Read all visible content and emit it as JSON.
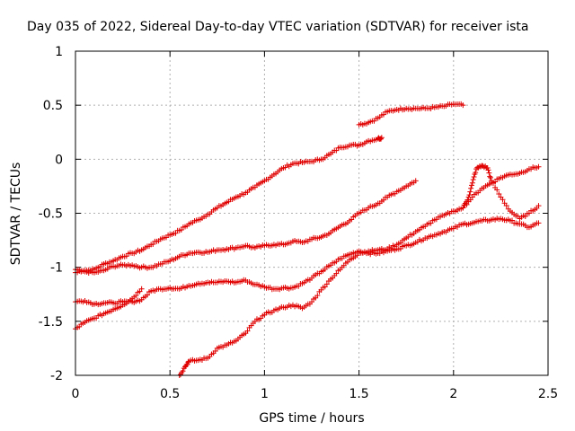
{
  "chart_data": {
    "type": "scatter",
    "title": "Day 035 of 2022, Sidereal Day-to-day VTEC variation (SDTVAR) for receiver ista",
    "xlabel": "GPS time / hours",
    "ylabel": "SDTVAR / TECUs",
    "xlim": [
      0,
      2.5
    ],
    "ylim": [
      -2,
      1
    ],
    "xticks": [
      "0",
      "0.5",
      "1",
      "1.5",
      "2",
      "2.5"
    ],
    "yticks": [
      "1",
      "0.5",
      "0",
      "-0.5",
      "-1",
      "-1.5",
      "-2"
    ],
    "grid": true,
    "marker": "+",
    "colors": {
      "series": "#e00000",
      "grid": "#b0b0b0"
    },
    "series": [
      {
        "x": [
          0,
          0.05,
          0.1,
          0.15,
          0.2,
          0.25,
          0.3,
          0.35,
          0.4,
          0.45,
          0.5,
          0.55,
          0.6,
          0.65,
          0.7,
          0.75,
          0.8,
          0.85,
          0.9,
          0.95,
          1.0,
          1.05,
          1.1,
          1.15,
          1.2,
          1.25,
          1.3,
          1.35,
          1.4,
          1.45,
          1.5,
          1.55,
          1.6,
          1.62
        ],
        "y": [
          -1.02,
          -1.03,
          -1.02,
          -0.97,
          -0.94,
          -0.9,
          -0.87,
          -0.84,
          -0.79,
          -0.74,
          -0.7,
          -0.66,
          -0.6,
          -0.56,
          -0.51,
          -0.45,
          -0.4,
          -0.35,
          -0.31,
          -0.26,
          -0.2,
          -0.14,
          -0.08,
          -0.04,
          -0.03,
          -0.02,
          0.0,
          0.05,
          0.11,
          0.13,
          0.13,
          0.17,
          0.19,
          0.2
        ]
      },
      {
        "x": [
          1.5,
          1.55,
          1.6,
          1.65,
          1.7,
          1.75,
          1.8,
          1.85,
          1.9,
          1.95,
          2.0,
          2.05
        ],
        "y": [
          0.32,
          0.34,
          0.38,
          0.44,
          0.46,
          0.47,
          0.47,
          0.47,
          0.48,
          0.49,
          0.51,
          0.5
        ]
      },
      {
        "x": [
          0,
          0.05,
          0.1,
          0.15,
          0.2,
          0.25,
          0.3,
          0.35,
          0.4,
          0.45,
          0.5,
          0.55,
          0.6,
          0.65,
          0.7,
          0.75,
          0.8,
          0.85,
          0.9,
          0.95,
          1.0,
          1.05,
          1.1,
          1.15,
          1.2,
          1.25,
          1.3,
          1.35,
          1.4,
          1.45,
          1.5,
          1.55,
          1.6,
          1.65,
          1.7,
          1.75,
          1.8
        ],
        "y": [
          -1.05,
          -1.04,
          -1.05,
          -1.03,
          -0.99,
          -0.98,
          -0.98,
          -1.0,
          -1.0,
          -0.97,
          -0.94,
          -0.9,
          -0.87,
          -0.86,
          -0.86,
          -0.84,
          -0.83,
          -0.82,
          -0.8,
          -0.82,
          -0.8,
          -0.79,
          -0.79,
          -0.76,
          -0.77,
          -0.74,
          -0.72,
          -0.68,
          -0.62,
          -0.57,
          -0.5,
          -0.45,
          -0.41,
          -0.35,
          -0.3,
          -0.25,
          -0.2
        ]
      },
      {
        "x": [
          0,
          0.05,
          0.1,
          0.15,
          0.2,
          0.25,
          0.3,
          0.35,
          0.4,
          0.45,
          0.5,
          0.55,
          0.6,
          0.65,
          0.7,
          0.75,
          0.8,
          0.85,
          0.9,
          0.95,
          1.0,
          1.05,
          1.1,
          1.15,
          1.2,
          1.25,
          1.3,
          1.35,
          1.4,
          1.45,
          1.5,
          1.55,
          1.6,
          1.65,
          1.7,
          1.75,
          1.8,
          1.85,
          1.9,
          1.95,
          2.0,
          2.05,
          2.1,
          2.15,
          2.2,
          2.25,
          2.3,
          2.35,
          2.4,
          2.45
        ],
        "y": [
          -1.32,
          -1.31,
          -1.34,
          -1.33,
          -1.33,
          -1.32,
          -1.32,
          -1.3,
          -1.22,
          -1.2,
          -1.19,
          -1.2,
          -1.17,
          -1.15,
          -1.14,
          -1.14,
          -1.13,
          -1.14,
          -1.12,
          -1.16,
          -1.18,
          -1.2,
          -1.19,
          -1.19,
          -1.15,
          -1.1,
          -1.04,
          -0.98,
          -0.92,
          -0.88,
          -0.85,
          -0.87,
          -0.87,
          -0.85,
          -0.83,
          -0.8,
          -0.77,
          -0.73,
          -0.7,
          -0.67,
          -0.64,
          -0.6,
          -0.59,
          -0.57,
          -0.56,
          -0.55,
          -0.57,
          -0.6,
          -0.63,
          -0.59
        ]
      },
      {
        "x": [
          0,
          0.05,
          0.1,
          0.15,
          0.2,
          0.25,
          0.3,
          0.35
        ],
        "y": [
          -1.57,
          -1.51,
          -1.47,
          -1.43,
          -1.39,
          -1.35,
          -1.29,
          -1.2
        ]
      },
      {
        "x": [
          0.55,
          0.58,
          0.6,
          0.65,
          0.7,
          0.75,
          0.8,
          0.85,
          0.9,
          0.95,
          1.0,
          1.05,
          1.1,
          1.15,
          1.2,
          1.25,
          1.3,
          1.35,
          1.4,
          1.45,
          1.5,
          1.55,
          1.6,
          1.65,
          1.7,
          1.75,
          1.8,
          1.85,
          1.9,
          1.95,
          2.0,
          2.05,
          2.08,
          2.1,
          2.12,
          2.15,
          2.18,
          2.2,
          2.25,
          2.3,
          2.35,
          2.4,
          2.45
        ],
        "y": [
          -2.0,
          -1.92,
          -1.87,
          -1.86,
          -1.84,
          -1.75,
          -1.72,
          -1.68,
          -1.61,
          -1.5,
          -1.44,
          -1.4,
          -1.37,
          -1.35,
          -1.38,
          -1.32,
          -1.21,
          -1.11,
          -1.02,
          -0.93,
          -0.87,
          -0.85,
          -0.84,
          -0.83,
          -0.79,
          -0.73,
          -0.67,
          -0.62,
          -0.56,
          -0.52,
          -0.48,
          -0.45,
          -0.35,
          -0.22,
          -0.09,
          -0.06,
          -0.08,
          -0.2,
          -0.35,
          -0.48,
          -0.55,
          -0.5,
          -0.43
        ]
      },
      {
        "x": [
          2.05,
          2.1,
          2.15,
          2.2,
          2.25,
          2.3,
          2.35,
          2.4,
          2.45
        ],
        "y": [
          -0.45,
          -0.35,
          -0.27,
          -0.22,
          -0.17,
          -0.14,
          -0.13,
          -0.09,
          -0.07
        ]
      }
    ]
  }
}
